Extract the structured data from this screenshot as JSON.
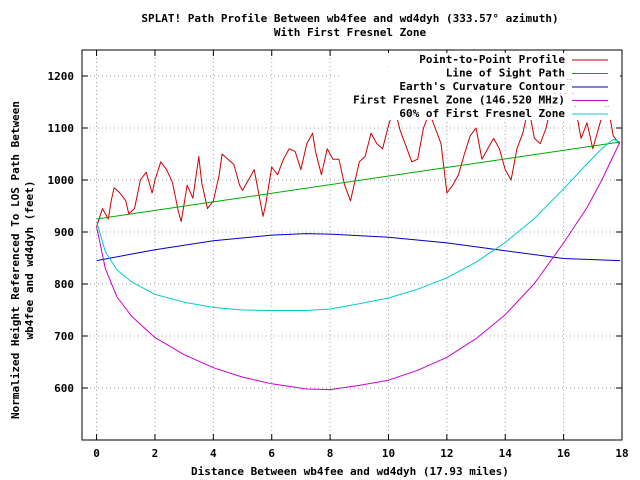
{
  "chart_data": {
    "type": "line",
    "title_line1": "SPLAT! Path Profile Between wb4fee and wd4dyh (333.57° azimuth)",
    "title_line2": "With First Fresnel Zone",
    "xlabel": "Distance Between wb4fee and wd4dyh (17.93 miles)",
    "ylabel_line1": "Normalized Height Referenced To LOS Path Between",
    "ylabel_line2": "wb4fee and wd4dyh (feet)",
    "xlim": [
      -0.5,
      18
    ],
    "ylim": [
      500,
      1250
    ],
    "xticks": [
      0,
      2,
      4,
      6,
      8,
      10,
      12,
      14,
      16,
      18
    ],
    "yticks": [
      600,
      700,
      800,
      900,
      1000,
      1100,
      1200
    ],
    "grid": true,
    "legend_position": "top-right",
    "series": [
      {
        "name": "Point-to-Point Profile",
        "color": "#cc0000",
        "x": [
          0,
          0.2,
          0.4,
          0.5,
          0.6,
          0.8,
          1.0,
          1.1,
          1.3,
          1.5,
          1.7,
          1.9,
          2.0,
          2.2,
          2.4,
          2.6,
          2.8,
          2.9,
          3.0,
          3.1,
          3.3,
          3.5,
          3.6,
          3.8,
          4.0,
          4.2,
          4.3,
          4.5,
          4.7,
          4.9,
          5.0,
          5.2,
          5.4,
          5.6,
          5.7,
          5.8,
          6.0,
          6.2,
          6.4,
          6.6,
          6.8,
          7.0,
          7.2,
          7.4,
          7.5,
          7.7,
          7.9,
          8.1,
          8.3,
          8.5,
          8.7,
          8.9,
          9.0,
          9.2,
          9.4,
          9.6,
          9.8,
          10.0,
          10.2,
          10.4,
          10.6,
          10.8,
          11.0,
          11.2,
          11.4,
          11.6,
          11.8,
          12.0,
          12.2,
          12.4,
          12.6,
          12.8,
          13.0,
          13.2,
          13.4,
          13.6,
          13.8,
          14.0,
          14.2,
          14.4,
          14.6,
          14.8,
          15.0,
          15.2,
          15.4,
          15.6,
          15.8,
          16.0,
          16.2,
          16.4,
          16.6,
          16.8,
          17.0,
          17.1,
          17.3,
          17.5,
          17.7,
          17.9
        ],
        "y": [
          910,
          945,
          925,
          960,
          985,
          975,
          960,
          935,
          945,
          1000,
          1015,
          975,
          1000,
          1035,
          1020,
          995,
          940,
          920,
          955,
          990,
          965,
          1045,
          995,
          945,
          960,
          1010,
          1050,
          1040,
          1030,
          990,
          980,
          1000,
          1020,
          960,
          930,
          955,
          1025,
          1010,
          1040,
          1060,
          1055,
          1020,
          1070,
          1090,
          1055,
          1010,
          1060,
          1040,
          1040,
          990,
          960,
          1010,
          1035,
          1045,
          1090,
          1070,
          1060,
          1105,
          1140,
          1095,
          1065,
          1035,
          1040,
          1100,
          1130,
          1100,
          1070,
          975,
          990,
          1010,
          1050,
          1085,
          1100,
          1040,
          1060,
          1080,
          1060,
          1020,
          1000,
          1060,
          1090,
          1140,
          1080,
          1070,
          1100,
          1150,
          1180,
          1150,
          1210,
          1140,
          1080,
          1110,
          1060,
          1080,
          1120,
          1150,
          1085,
          1070
        ]
      },
      {
        "name": "Line of Sight Path",
        "color": "#00aa00",
        "x": [
          0,
          17.93
        ],
        "y": [
          925,
          1073
        ]
      },
      {
        "name": "Earth's Curvature Contour",
        "color": "#0000cc",
        "x": [
          0,
          2,
          4,
          6,
          7.17,
          8,
          10,
          12,
          14,
          16,
          17.93
        ],
        "y": [
          845,
          866,
          883,
          894,
          897,
          896,
          890,
          879,
          864,
          849,
          845
        ]
      },
      {
        "name": "First Fresnel Zone (146.520 MHz)",
        "color": "#cc00cc",
        "x": [
          0,
          0.3,
          0.7,
          1.2,
          2,
          3,
          4,
          5,
          6,
          7.2,
          8,
          9,
          10,
          11,
          12,
          13,
          14,
          15,
          16,
          16.8,
          17.3,
          17.7,
          17.93
        ],
        "y": [
          910,
          829,
          775,
          738,
          697,
          664,
          639,
          621,
          608,
          598,
          597,
          605,
          615,
          634,
          659,
          695,
          741,
          801,
          879,
          947,
          999,
          1046,
          1073
        ]
      },
      {
        "name": "60% of First Fresnel Zone",
        "color": "#00cccc",
        "x": [
          0,
          0.3,
          0.7,
          1.2,
          2,
          3,
          4,
          5,
          6,
          7.2,
          8,
          9,
          10,
          11,
          12,
          13,
          14,
          15,
          16,
          16.8,
          17.3,
          17.7,
          17.93
        ],
        "y": [
          920,
          862,
          827,
          804,
          780,
          765,
          755,
          750,
          749,
          749,
          752,
          762,
          773,
          790,
          812,
          842,
          880,
          926,
          983,
          1031,
          1060,
          1078,
          1073
        ]
      }
    ]
  }
}
